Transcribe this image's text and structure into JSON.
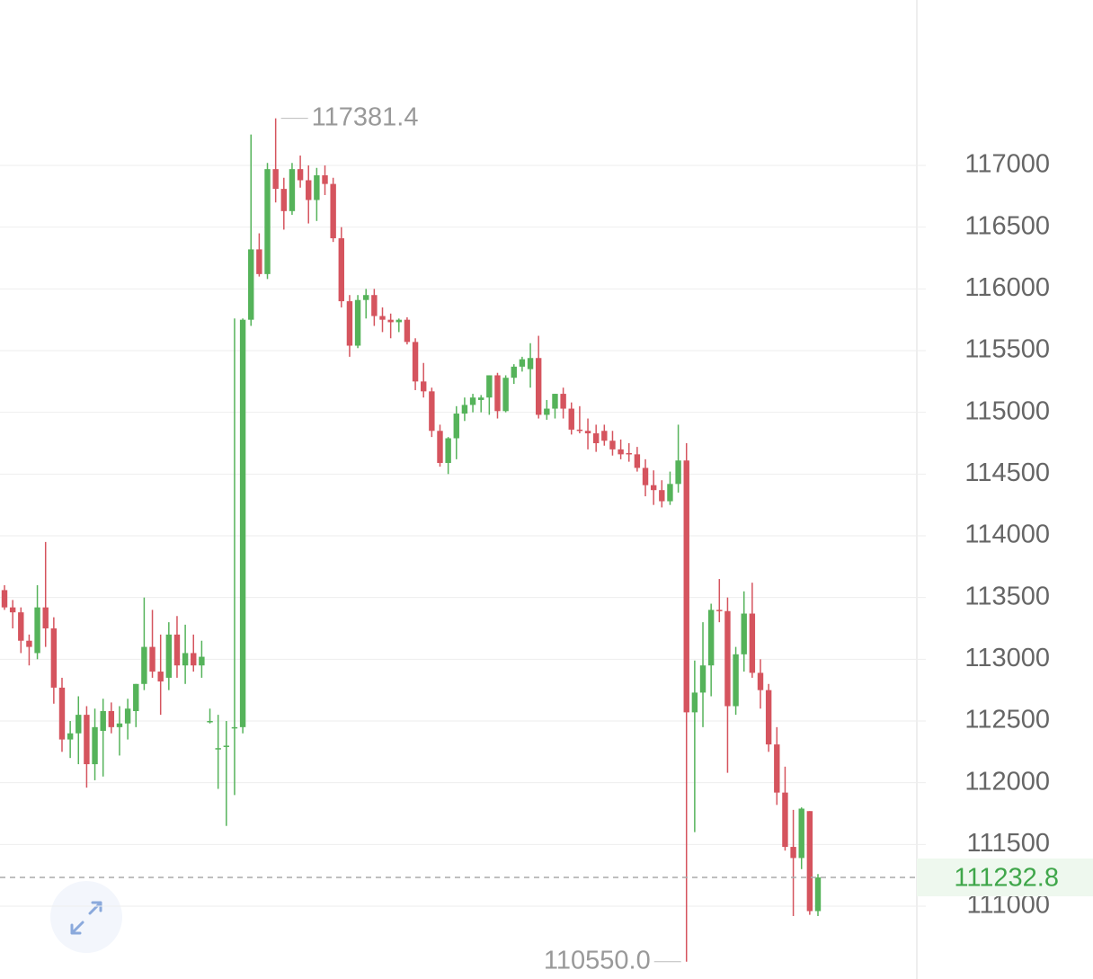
{
  "chart_data": {
    "type": "candlestick",
    "up_color": "#55b35a",
    "down_color": "#d5545e",
    "ylim": [
      110410,
      118340
    ],
    "yticks": [
      111000,
      111500,
      112000,
      112500,
      113000,
      113500,
      114000,
      114500,
      115000,
      115500,
      116000,
      116500,
      117000
    ],
    "grid": true,
    "open": [
      113560,
      113420,
      113380,
      113150,
      113050,
      113420,
      113250,
      112770,
      112350,
      112400,
      112550,
      112150,
      112420,
      112580,
      112450,
      112480,
      112580,
      112800,
      113100,
      112900,
      112850,
      113200,
      112950,
      113050,
      112950,
      112500,
      112280,
      112300,
      112450,
      112450,
      115750,
      116320,
      116120,
      116970,
      116810,
      116630,
      116970,
      116880,
      116720,
      116920,
      116850,
      116410,
      115900,
      115540,
      115910,
      115950,
      115780,
      115750,
      115730,
      115750,
      115570,
      115250,
      115170,
      114850,
      114590,
      114790,
      114990,
      115060,
      115100,
      115120,
      115300,
      115010,
      115280,
      115370,
      115350,
      115440,
      114980,
      115030,
      115150,
      115030,
      114860,
      114850,
      114830,
      114850,
      114770,
      114700,
      114670,
      114660,
      114550,
      114410,
      114370,
      114280,
      114420,
      114610,
      112570,
      112730,
      112950,
      113400,
      113390,
      112620,
      113040,
      113370,
      112890,
      112750,
      112310,
      111920,
      111480,
      111390,
      111770,
      110960
    ],
    "high": [
      113600,
      113480,
      113420,
      113200,
      113600,
      113950,
      113340,
      112850,
      112500,
      112700,
      112620,
      112600,
      112680,
      112650,
      112620,
      112680,
      112800,
      113500,
      113400,
      113200,
      113300,
      113350,
      113280,
      113200,
      113150,
      112600,
      112550,
      112500,
      115760,
      115760,
      117250,
      116450,
      117020,
      117381.4,
      116900,
      117020,
      117080,
      117000,
      116980,
      117000,
      116900,
      116500,
      115950,
      115950,
      116000,
      116000,
      115850,
      115800,
      115760,
      115770,
      115600,
      115400,
      115200,
      114900,
      114800,
      115050,
      115120,
      115150,
      115140,
      115300,
      115320,
      115300,
      115390,
      115450,
      115560,
      115620,
      115100,
      115150,
      115200,
      115080,
      115050,
      114950,
      114900,
      114900,
      114850,
      114780,
      114750,
      114720,
      114620,
      114530,
      114450,
      114520,
      114900,
      114750,
      112990,
      113300,
      113450,
      113650,
      113500,
      113100,
      113550,
      113620,
      113000,
      112800,
      112450,
      112130,
      111780,
      111800,
      111770,
      111260
    ],
    "low": [
      113400,
      113250,
      113050,
      112950,
      113000,
      113100,
      112640,
      112250,
      112200,
      112150,
      111960,
      112020,
      112050,
      112400,
      112220,
      112350,
      112450,
      112750,
      112850,
      112550,
      112750,
      112850,
      112800,
      112900,
      112850,
      112480,
      111950,
      111650,
      111900,
      112400,
      115700,
      116100,
      116080,
      116700,
      116480,
      116600,
      116820,
      116530,
      116550,
      116760,
      116380,
      115850,
      115450,
      115520,
      115760,
      115700,
      115650,
      115600,
      115650,
      115550,
      115180,
      115120,
      114800,
      114560,
      114500,
      114620,
      114930,
      115000,
      115000,
      114980,
      114950,
      115000,
      115230,
      115330,
      115200,
      114950,
      114940,
      114950,
      114950,
      114820,
      114830,
      114700,
      114680,
      114730,
      114650,
      114620,
      114600,
      114520,
      114320,
      114250,
      114230,
      114250,
      114350,
      110550,
      111600,
      112450,
      112700,
      113300,
      112080,
      112550,
      112900,
      112850,
      112600,
      112250,
      111820,
      111450,
      110920,
      111300,
      110930,
      110920
    ],
    "close": [
      113420,
      113380,
      113150,
      113100,
      113420,
      113250,
      112770,
      112350,
      112400,
      112550,
      112150,
      112450,
      112580,
      112450,
      112480,
      112600,
      112800,
      113100,
      112900,
      112820,
      113200,
      112950,
      113050,
      112950,
      113020,
      112500,
      112280,
      112300,
      112450,
      115750,
      116320,
      116120,
      116970,
      116810,
      116630,
      116970,
      116880,
      116720,
      116920,
      116850,
      116410,
      115900,
      115540,
      115910,
      115950,
      115780,
      115750,
      115730,
      115750,
      115570,
      115250,
      115170,
      114850,
      114590,
      114790,
      114990,
      115060,
      115120,
      115120,
      115300,
      115010,
      115280,
      115370,
      115430,
      115440,
      114980,
      115030,
      115150,
      115030,
      114860,
      114850,
      114830,
      114750,
      114770,
      114700,
      114660,
      114660,
      114550,
      114410,
      114370,
      114280,
      114420,
      114610,
      112570,
      112730,
      112950,
      113400,
      113390,
      112620,
      113040,
      113370,
      112890,
      112750,
      112310,
      111920,
      111480,
      111390,
      111790,
      110960,
      111232.8
    ],
    "annotations": [
      {
        "text": "117381.4",
        "value": 117381.4
      },
      {
        "text": "110550.0",
        "value": 110550
      }
    ],
    "last_price": {
      "text": "111232.8",
      "value": 111232.8
    }
  }
}
